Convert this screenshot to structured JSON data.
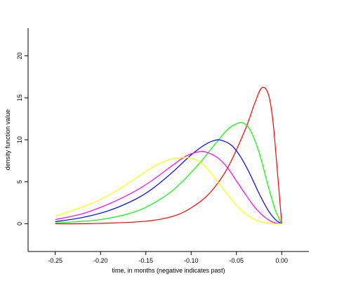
{
  "chart_data": {
    "type": "line",
    "title": "",
    "xlabel": "time, in months (negative indicates past)",
    "ylabel": "density function value",
    "xlim": [
      -0.28,
      0.03
    ],
    "ylim": [
      -3.3,
      23.3
    ],
    "x_ticks": [
      {
        "value": -0.25,
        "label": "-0.25"
      },
      {
        "value": -0.2,
        "label": "-0.20"
      },
      {
        "value": -0.15,
        "label": "-0.15"
      },
      {
        "value": -0.1,
        "label": "-0.10"
      },
      {
        "value": -0.05,
        "label": "-0.05"
      },
      {
        "value": 0.0,
        "label": "0.00"
      }
    ],
    "y_ticks": [
      {
        "value": 0,
        "label": "0"
      },
      {
        "value": 5,
        "label": "5"
      },
      {
        "value": 10,
        "label": "10"
      },
      {
        "value": 15,
        "label": "15"
      },
      {
        "value": 20,
        "label": "20"
      }
    ],
    "grid": false,
    "legend": "none",
    "series": [
      {
        "color": "#ff0000",
        "x": [
          -0.25,
          -0.2,
          -0.15,
          -0.12,
          -0.1,
          -0.08,
          -0.06,
          -0.04,
          -0.03,
          -0.022,
          -0.015,
          -0.01,
          -0.005,
          0.0
        ],
        "y": [
          0.0,
          0.05,
          0.3,
          0.9,
          1.9,
          3.6,
          6.6,
          11.3,
          14.3,
          16.2,
          15.5,
          12.5,
          6.5,
          0.0
        ]
      },
      {
        "color": "#00ff00",
        "x": [
          -0.25,
          -0.2,
          -0.16,
          -0.13,
          -0.11,
          -0.09,
          -0.075,
          -0.06,
          -0.05,
          -0.043,
          -0.035,
          -0.025,
          -0.015,
          -0.007,
          0.0
        ],
        "y": [
          0.1,
          0.5,
          1.5,
          3.2,
          5.0,
          7.3,
          9.3,
          11.2,
          11.9,
          12.0,
          11.2,
          8.5,
          4.5,
          1.6,
          0.0
        ]
      },
      {
        "color": "#0000ff",
        "x": [
          -0.25,
          -0.22,
          -0.19,
          -0.16,
          -0.14,
          -0.12,
          -0.1,
          -0.085,
          -0.075,
          -0.067,
          -0.055,
          -0.045,
          -0.035,
          -0.025,
          -0.015,
          -0.007,
          0.0
        ],
        "y": [
          0.25,
          0.75,
          1.6,
          3.0,
          4.4,
          6.2,
          8.2,
          9.4,
          9.9,
          9.95,
          9.3,
          7.9,
          5.9,
          3.6,
          1.6,
          0.5,
          0.0
        ]
      },
      {
        "color": "#ff00ff",
        "x": [
          -0.25,
          -0.22,
          -0.19,
          -0.16,
          -0.14,
          -0.12,
          -0.105,
          -0.09,
          -0.08,
          -0.07,
          -0.06,
          -0.05,
          -0.04,
          -0.03,
          -0.02,
          -0.01,
          0.0
        ],
        "y": [
          0.5,
          1.2,
          2.4,
          4.0,
          5.4,
          7.0,
          8.1,
          8.6,
          8.4,
          7.8,
          6.7,
          5.1,
          3.5,
          2.0,
          0.9,
          0.2,
          0.0
        ]
      },
      {
        "color": "#ffff00",
        "x": [
          -0.25,
          -0.22,
          -0.2,
          -0.18,
          -0.16,
          -0.14,
          -0.125,
          -0.11,
          -0.1,
          -0.09,
          -0.08,
          -0.07,
          -0.06,
          -0.05,
          -0.04,
          -0.03,
          -0.02,
          -0.01,
          0.0
        ],
        "y": [
          0.9,
          2.0,
          2.9,
          4.1,
          5.5,
          6.9,
          7.6,
          7.9,
          7.8,
          7.3,
          6.3,
          4.9,
          3.5,
          2.2,
          1.2,
          0.5,
          0.15,
          0.03,
          0.0
        ]
      }
    ]
  }
}
